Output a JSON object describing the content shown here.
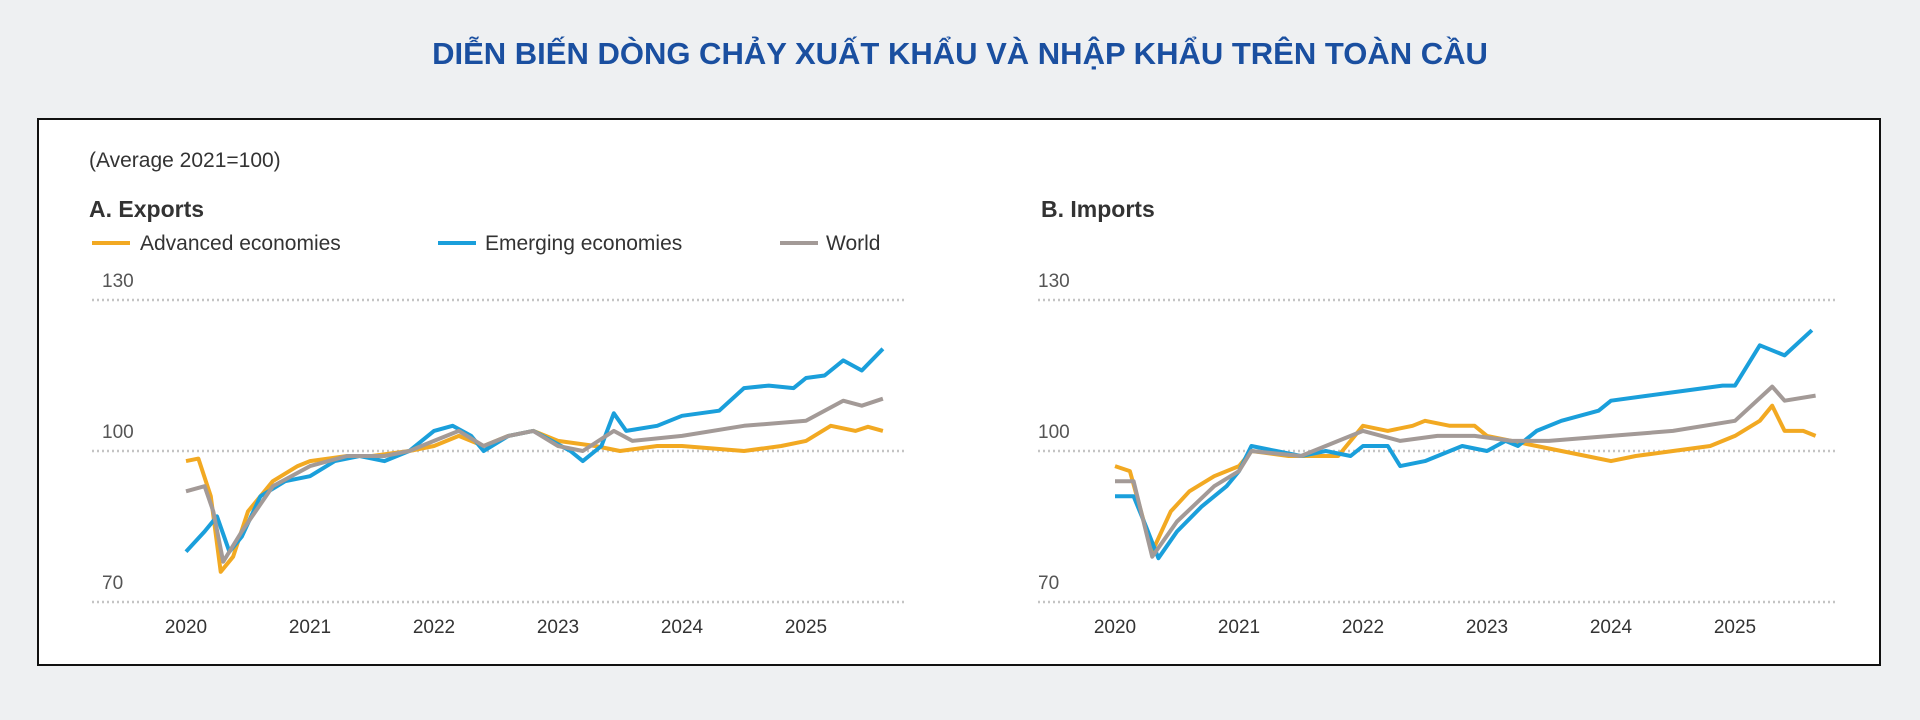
{
  "page_title": "DIỄN BIẾN DÒNG CHẢY XUẤT KHẨU VÀ NHẬP KHẨU TRÊN TOÀN CẦU",
  "subtitle": "(Average 2021=100)",
  "legend": [
    {
      "name": "Advanced economies",
      "color": "#f2a922"
    },
    {
      "name": "Emerging economies",
      "color": "#1a9fdb"
    },
    {
      "name": "World",
      "color": "#a39a97"
    }
  ],
  "chart_data": [
    {
      "type": "line",
      "title": "A. Exports",
      "ylim": [
        70,
        130
      ],
      "yticks": [
        "130",
        "100",
        "70"
      ],
      "xticks": [
        "2020",
        "2021",
        "2022",
        "2023",
        "2024",
        "2025"
      ],
      "xlim": [
        2020,
        2025.7
      ],
      "grid": "horizontal dotted",
      "legend_position": "top-left",
      "series": [
        {
          "name": "Advanced economies",
          "color": "#f2a922",
          "points": [
            [
              2020.0,
              98
            ],
            [
              2020.1,
              98.5
            ],
            [
              2020.2,
              91
            ],
            [
              2020.28,
              76
            ],
            [
              2020.38,
              79
            ],
            [
              2020.5,
              88
            ],
            [
              2020.7,
              94
            ],
            [
              2020.9,
              97
            ],
            [
              2021.0,
              98
            ],
            [
              2021.3,
              99
            ],
            [
              2021.5,
              99
            ],
            [
              2021.8,
              100
            ],
            [
              2022.0,
              101
            ],
            [
              2022.2,
              103
            ],
            [
              2022.4,
              101
            ],
            [
              2022.6,
              103
            ],
            [
              2022.8,
              104
            ],
            [
              2023.0,
              102
            ],
            [
              2023.3,
              101
            ],
            [
              2023.5,
              100
            ],
            [
              2023.8,
              101
            ],
            [
              2024.0,
              101
            ],
            [
              2024.5,
              100
            ],
            [
              2024.8,
              101
            ],
            [
              2025.0,
              102
            ],
            [
              2025.2,
              105
            ],
            [
              2025.4,
              104
            ],
            [
              2025.5,
              104.8
            ],
            [
              2025.62,
              104
            ]
          ]
        },
        {
          "name": "Emerging economies",
          "color": "#1a9fdb",
          "points": [
            [
              2020.0,
              80
            ],
            [
              2020.15,
              84
            ],
            [
              2020.25,
              87
            ],
            [
              2020.35,
              80
            ],
            [
              2020.45,
              83
            ],
            [
              2020.6,
              91
            ],
            [
              2020.8,
              94
            ],
            [
              2021.0,
              95
            ],
            [
              2021.2,
              98
            ],
            [
              2021.4,
              99
            ],
            [
              2021.6,
              98
            ],
            [
              2021.8,
              100
            ],
            [
              2022.0,
              104
            ],
            [
              2022.15,
              105
            ],
            [
              2022.3,
              103
            ],
            [
              2022.4,
              100
            ],
            [
              2022.6,
              103
            ],
            [
              2022.8,
              104
            ],
            [
              2022.95,
              102
            ],
            [
              2023.1,
              100
            ],
            [
              2023.2,
              98
            ],
            [
              2023.35,
              101
            ],
            [
              2023.45,
              107.5
            ],
            [
              2023.55,
              104
            ],
            [
              2023.8,
              105
            ],
            [
              2024.0,
              107
            ],
            [
              2024.3,
              108
            ],
            [
              2024.5,
              112.5
            ],
            [
              2024.7,
              113
            ],
            [
              2024.9,
              112.5
            ],
            [
              2025.0,
              114.5
            ],
            [
              2025.15,
              115
            ],
            [
              2025.3,
              118
            ],
            [
              2025.45,
              116
            ],
            [
              2025.62,
              120.3
            ]
          ]
        },
        {
          "name": "World",
          "color": "#a39a97",
          "points": [
            [
              2020.0,
              92
            ],
            [
              2020.15,
              93
            ],
            [
              2020.22,
              88
            ],
            [
              2020.3,
              78
            ],
            [
              2020.45,
              84
            ],
            [
              2020.7,
              93
            ],
            [
              2021.0,
              97
            ],
            [
              2021.3,
              99
            ],
            [
              2021.6,
              99
            ],
            [
              2021.8,
              100
            ],
            [
              2022.0,
              102
            ],
            [
              2022.2,
              104
            ],
            [
              2022.4,
              101
            ],
            [
              2022.6,
              103
            ],
            [
              2022.8,
              104
            ],
            [
              2023.0,
              101
            ],
            [
              2023.2,
              100
            ],
            [
              2023.45,
              104
            ],
            [
              2023.6,
              102
            ],
            [
              2024.0,
              103
            ],
            [
              2024.5,
              105
            ],
            [
              2025.0,
              106
            ],
            [
              2025.3,
              110
            ],
            [
              2025.45,
              109
            ],
            [
              2025.62,
              110.4
            ]
          ]
        }
      ]
    },
    {
      "type": "line",
      "title": "B. Imports",
      "ylim": [
        70,
        130
      ],
      "yticks": [
        "130",
        "100",
        "70"
      ],
      "xticks": [
        "2020",
        "2021",
        "2022",
        "2023",
        "2024",
        "2025"
      ],
      "xlim": [
        2020,
        2025.7
      ],
      "grid": "horizontal dotted",
      "series": [
        {
          "name": "Advanced economies",
          "color": "#f2a922",
          "points": [
            [
              2020.0,
              97
            ],
            [
              2020.12,
              96
            ],
            [
              2020.3,
              80
            ],
            [
              2020.45,
              88
            ],
            [
              2020.6,
              92
            ],
            [
              2020.8,
              95
            ],
            [
              2021.0,
              97
            ],
            [
              2021.1,
              100
            ],
            [
              2021.4,
              99
            ],
            [
              2021.6,
              99
            ],
            [
              2021.8,
              99
            ],
            [
              2022.0,
              105
            ],
            [
              2022.2,
              104
            ],
            [
              2022.4,
              105
            ],
            [
              2022.5,
              106
            ],
            [
              2022.7,
              105
            ],
            [
              2022.9,
              105
            ],
            [
              2023.0,
              103
            ],
            [
              2023.2,
              102
            ],
            [
              2023.4,
              101
            ],
            [
              2023.6,
              100
            ],
            [
              2023.8,
              99
            ],
            [
              2024.0,
              98
            ],
            [
              2024.2,
              99
            ],
            [
              2024.5,
              100
            ],
            [
              2024.8,
              101
            ],
            [
              2025.0,
              103
            ],
            [
              2025.2,
              106
            ],
            [
              2025.3,
              109
            ],
            [
              2025.4,
              104
            ],
            [
              2025.55,
              104
            ],
            [
              2025.65,
              103
            ]
          ]
        },
        {
          "name": "Emerging economies",
          "color": "#1a9fdb",
          "points": [
            [
              2020.0,
              91
            ],
            [
              2020.15,
              91
            ],
            [
              2020.25,
              85
            ],
            [
              2020.35,
              78.7
            ],
            [
              2020.5,
              84
            ],
            [
              2020.7,
              89
            ],
            [
              2020.9,
              93
            ],
            [
              2021.0,
              96
            ],
            [
              2021.1,
              101
            ],
            [
              2021.3,
              100
            ],
            [
              2021.5,
              99
            ],
            [
              2021.7,
              100
            ],
            [
              2021.9,
              99
            ],
            [
              2022.0,
              101
            ],
            [
              2022.2,
              101
            ],
            [
              2022.3,
              97
            ],
            [
              2022.5,
              98
            ],
            [
              2022.8,
              101
            ],
            [
              2023.0,
              100
            ],
            [
              2023.15,
              102
            ],
            [
              2023.25,
              101
            ],
            [
              2023.4,
              104
            ],
            [
              2023.6,
              106
            ],
            [
              2023.9,
              108
            ],
            [
              2024.0,
              110
            ],
            [
              2024.3,
              111
            ],
            [
              2024.6,
              112
            ],
            [
              2024.9,
              113
            ],
            [
              2025.0,
              113
            ],
            [
              2025.2,
              121
            ],
            [
              2025.4,
              119
            ],
            [
              2025.62,
              124
            ]
          ]
        },
        {
          "name": "World",
          "color": "#a39a97",
          "points": [
            [
              2020.0,
              94
            ],
            [
              2020.15,
              94
            ],
            [
              2020.3,
              79
            ],
            [
              2020.5,
              86
            ],
            [
              2020.8,
              93
            ],
            [
              2021.0,
              96
            ],
            [
              2021.1,
              100
            ],
            [
              2021.5,
              99
            ],
            [
              2022.0,
              104
            ],
            [
              2022.3,
              102
            ],
            [
              2022.6,
              103
            ],
            [
              2022.9,
              103
            ],
            [
              2023.2,
              102
            ],
            [
              2023.5,
              102
            ],
            [
              2024.0,
              103
            ],
            [
              2024.5,
              104
            ],
            [
              2025.0,
              106
            ],
            [
              2025.3,
              112.8
            ],
            [
              2025.4,
              110
            ],
            [
              2025.65,
              111
            ]
          ]
        }
      ]
    }
  ]
}
